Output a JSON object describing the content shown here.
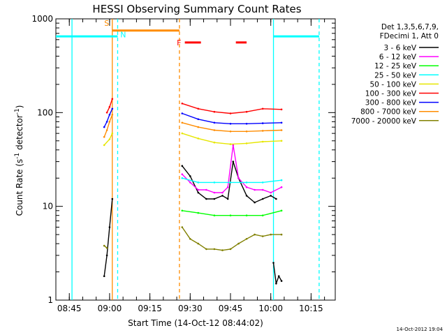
{
  "chart_data": {
    "type": "line",
    "title": "HESSI Observing Summary Count Rates",
    "xlabel": "Start Time (14-Oct-12 08:44:02)",
    "ylabel_prefix": "Count Rate (s",
    "ylabel_mid": " detector",
    "ylabel_suffix": ")",
    "ylabel_exp": "-1",
    "y_scale": "log",
    "ylim": [
      1,
      1000
    ],
    "xlim": [
      "08:40",
      "10:24"
    ],
    "x_ticks": [
      "08:45",
      "09:00",
      "09:15",
      "09:30",
      "09:45",
      "10:00",
      "10:15"
    ],
    "y_ticks": [
      "1",
      "10",
      "100",
      "1000"
    ],
    "legend_header": [
      "Det 1,3,5,6,7,9,",
      "FDecimi 1, Att 0"
    ],
    "legend_placement": "right",
    "timestamp": "14-Oct-2012 19:04",
    "series": [
      {
        "name": "3 - 6 keV",
        "color": "#000000",
        "segments": [
          {
            "x": [
              "08:58",
              "08:59",
              "09:00",
              "09:01"
            ],
            "y": [
              1.8,
              3,
              6,
              12
            ]
          },
          {
            "x": [
              "09:27",
              "09:30",
              "09:33",
              "09:36",
              "09:39",
              "09:42",
              "09:44",
              "09:46",
              "09:48",
              "09:51",
              "09:54",
              "09:57",
              "10:00",
              "10:02"
            ],
            "y": [
              27,
              21,
              14,
              12,
              12,
              13,
              12,
              30,
              20,
              13,
              11,
              12,
              13,
              12
            ]
          },
          {
            "x": [
              "10:01",
              "10:02",
              "10:03",
              "10:04"
            ],
            "y": [
              2.5,
              1.5,
              1.8,
              1.6
            ]
          }
        ]
      },
      {
        "name": "6 - 12 keV",
        "color": "#ff00ff",
        "segments": [
          {
            "x": [
              "09:27",
              "09:30",
              "09:33",
              "09:36",
              "09:39",
              "09:42",
              "09:44",
              "09:46",
              "09:48",
              "09:51",
              "09:54",
              "09:57",
              "10:00",
              "10:04"
            ],
            "y": [
              22,
              18,
              15,
              15,
              14,
              14,
              16,
              45,
              20,
              16,
              15,
              15,
              14,
              16
            ]
          }
        ]
      },
      {
        "name": "12 - 25 keV",
        "color": "#00ff00",
        "segments": [
          {
            "x": [
              "09:27",
              "09:33",
              "09:39",
              "09:45",
              "09:51",
              "09:57",
              "10:04"
            ],
            "y": [
              9,
              8.5,
              8,
              8,
              8,
              8,
              9
            ]
          }
        ]
      },
      {
        "name": "25 - 50 keV",
        "color": "#00ffff",
        "segments": [
          {
            "x": [
              "09:27",
              "09:33",
              "09:39",
              "09:45",
              "09:51",
              "09:57",
              "10:04"
            ],
            "y": [
              20,
              18,
              18,
              18,
              18,
              18,
              19
            ]
          }
        ]
      },
      {
        "name": "50 - 100 keV",
        "color": "#e6e600",
        "segments": [
          {
            "x": [
              "08:58",
              "09:00",
              "09:01"
            ],
            "y": [
              45,
              52,
              60
            ]
          },
          {
            "x": [
              "09:27",
              "09:33",
              "09:39",
              "09:45",
              "09:51",
              "09:57",
              "10:04"
            ],
            "y": [
              60,
              53,
              48,
              46,
              47,
              49,
              50
            ]
          }
        ]
      },
      {
        "name": "100 - 300 keV",
        "color": "#ff0000",
        "segments": [
          {
            "x": [
              "08:59",
              "09:00",
              "09:01"
            ],
            "y": [
              100,
              115,
              140
            ]
          },
          {
            "x": [
              "09:27",
              "09:33",
              "09:39",
              "09:45",
              "09:51",
              "09:57",
              "10:04"
            ],
            "y": [
              125,
              110,
              102,
              98,
              102,
              110,
              108
            ]
          }
        ]
      },
      {
        "name": "300 - 800 keV",
        "color": "#0000ff",
        "segments": [
          {
            "x": [
              "08:58",
              "08:59",
              "09:00",
              "09:01"
            ],
            "y": [
              70,
              80,
              95,
              110
            ]
          },
          {
            "x": [
              "09:27",
              "09:33",
              "09:39",
              "09:45",
              "09:51",
              "09:57",
              "10:04"
            ],
            "y": [
              98,
              85,
              78,
              76,
              76,
              77,
              78
            ]
          }
        ]
      },
      {
        "name": "800 - 7000 keV",
        "color": "#ff8c00",
        "segments": [
          {
            "x": [
              "08:58",
              "08:59",
              "09:00",
              "09:01"
            ],
            "y": [
              55,
              65,
              80,
              95
            ]
          },
          {
            "x": [
              "09:27",
              "09:33",
              "09:39",
              "09:45",
              "09:51",
              "09:57",
              "10:04"
            ],
            "y": [
              78,
              70,
              65,
              63,
              63,
              64,
              65
            ]
          }
        ]
      },
      {
        "name": "7000 - 20000 keV",
        "color": "#808000",
        "segments": [
          {
            "x": [
              "08:58",
              "08:59"
            ],
            "y": [
              3.8,
              3.6
            ]
          },
          {
            "x": [
              "09:27",
              "09:30",
              "09:33",
              "09:36",
              "09:39",
              "09:42",
              "09:45",
              "09:48",
              "09:51",
              "09:54",
              "09:57",
              "10:00",
              "10:04"
            ],
            "y": [
              6,
              4.5,
              4,
              3.5,
              3.5,
              3.4,
              3.5,
              4,
              4.5,
              5,
              4.8,
              5,
              5
            ]
          }
        ]
      }
    ],
    "vlines": [
      {
        "x": "08:46",
        "color": "#00ffff",
        "dash": "solid"
      },
      {
        "x": "09:01",
        "color": "#ff8c00",
        "dash": "solid"
      },
      {
        "x": "09:03",
        "color": "#00ffff",
        "dash": "dashed"
      },
      {
        "x": "09:26",
        "color": "#ff8c00",
        "dash": "dashed"
      },
      {
        "x": "10:01",
        "color": "#00ffff",
        "dash": "solid"
      },
      {
        "x": "10:18",
        "color": "#00ffff",
        "dash": "dashed"
      }
    ],
    "bars": [
      {
        "x1": "08:40",
        "x2": "09:03",
        "y": 650,
        "color": "#00ffff"
      },
      {
        "x1": "10:01",
        "x2": "10:18",
        "y": 650,
        "color": "#00ffff"
      },
      {
        "x1": "09:01",
        "x2": "09:26",
        "y": 750,
        "color": "#ff8c00"
      },
      {
        "x1": "09:28",
        "x2": "09:34",
        "y": 560,
        "color": "#ff0000"
      },
      {
        "x1": "09:47",
        "x2": "09:51",
        "y": 560,
        "color": "#ff0000"
      }
    ],
    "markers": [
      {
        "text": "S",
        "x": "08:58",
        "y": 900,
        "color": "#ff8c00"
      },
      {
        "text": "N",
        "x": "09:04",
        "y": 680,
        "color": "#00ffff"
      },
      {
        "text": "F",
        "x": "09:25",
        "y": 560,
        "color": "#ff0000"
      }
    ]
  }
}
